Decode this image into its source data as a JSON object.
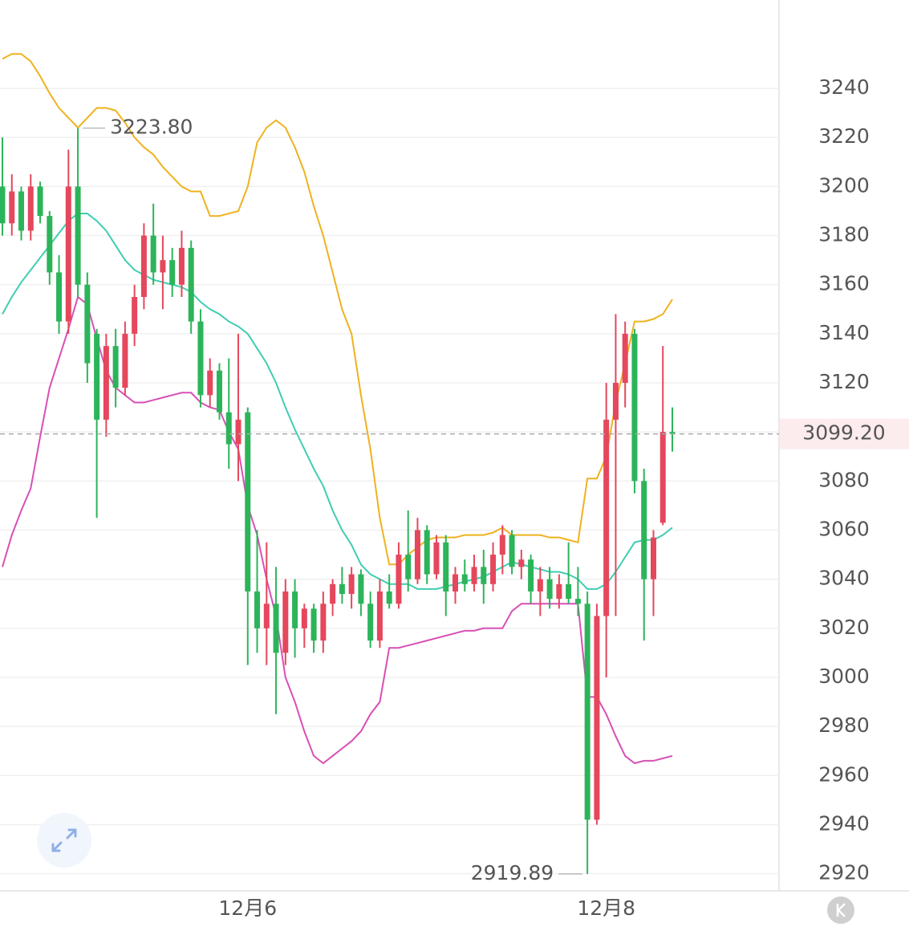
{
  "chart_data": {
    "type": "candlestick",
    "up_color": "#e5475c",
    "down_color": "#2cb45a",
    "ylim": [
      2913,
      3276
    ],
    "yticks": [
      2920,
      2940,
      2960,
      2980,
      3000,
      3020,
      3040,
      3060,
      3080,
      3100,
      3120,
      3140,
      3160,
      3180,
      3200,
      3220,
      3240
    ],
    "grid": true,
    "categories": [
      null,
      null,
      null,
      null,
      null,
      null,
      null,
      null,
      null,
      null,
      null,
      null,
      null,
      null,
      null,
      null,
      null,
      null,
      null,
      null,
      null,
      null,
      null,
      null,
      null,
      null,
      "12月6",
      null,
      null,
      null,
      null,
      null,
      null,
      null,
      null,
      null,
      null,
      null,
      null,
      null,
      null,
      null,
      null,
      null,
      null,
      null,
      null,
      null,
      null,
      null,
      null,
      null,
      null,
      null,
      null,
      null,
      null,
      null,
      null,
      null,
      null,
      null,
      null,
      null,
      "12月8",
      null,
      null,
      null,
      null,
      null,
      null,
      null
    ],
    "open": [
      3200,
      3185,
      3198,
      3182,
      3200,
      3188,
      3165,
      3145,
      3200,
      3160,
      3140,
      3105,
      3135,
      3118,
      3140,
      3155,
      3180,
      3165,
      3170,
      3160,
      3175,
      3145,
      3115,
      3125,
      3108,
      3095,
      3108,
      3035,
      3020,
      3030,
      3010,
      3035,
      3020,
      3028,
      3015,
      3030,
      3038,
      3034,
      3042,
      3030,
      3015,
      3035,
      3030,
      3050,
      3040,
      3060,
      3042,
      3055,
      3035,
      3042,
      3038,
      3045,
      3038,
      3050,
      3058,
      3045,
      3048,
      3035,
      3040,
      3032,
      3038,
      3032,
      3030,
      2942,
      3025,
      3105,
      3120,
      3140,
      3080,
      3040,
      3063,
      3100
    ],
    "high": [
      3220,
      3205,
      3200,
      3205,
      3202,
      3190,
      3172,
      3215,
      3223.8,
      3165,
      3142,
      3140,
      3142,
      3145,
      3160,
      3185,
      3193,
      3180,
      3175,
      3182,
      3178,
      3150,
      3130,
      3128,
      3130,
      3140,
      3110,
      3060,
      3055,
      3045,
      3040,
      3040,
      3030,
      3030,
      3035,
      3040,
      3045,
      3045,
      3044,
      3035,
      3040,
      3042,
      3055,
      3068,
      3065,
      3062,
      3058,
      3058,
      3045,
      3048,
      3050,
      3052,
      3055,
      3062,
      3060,
      3052,
      3050,
      3045,
      3045,
      3042,
      3055,
      3045,
      3035,
      3030,
      3120,
      3148,
      3145,
      3142,
      3085,
      3060,
      3135,
      3110
    ],
    "low": [
      3180,
      3180,
      3178,
      3178,
      3185,
      3160,
      3140,
      3140,
      3155,
      3120,
      3065,
      3098,
      3110,
      3115,
      3135,
      3150,
      3160,
      3150,
      3155,
      3155,
      3140,
      3110,
      3110,
      3105,
      3085,
      3080,
      3005,
      3010,
      3005,
      2985,
      3005,
      3008,
      3012,
      3010,
      3010,
      3025,
      3030,
      3028,
      3025,
      3012,
      3012,
      3028,
      3028,
      3035,
      3038,
      3038,
      3040,
      3025,
      3030,
      3035,
      3035,
      3030,
      3035,
      3042,
      3042,
      3040,
      3030,
      3025,
      3028,
      3028,
      3030,
      3025,
      2919.89,
      2940,
      3000,
      3025,
      3110,
      3075,
      3015,
      3025,
      3062,
      3092
    ],
    "close": [
      3185,
      3198,
      3182,
      3200,
      3188,
      3165,
      3145,
      3200,
      3160,
      3128,
      3105,
      3135,
      3118,
      3140,
      3155,
      3180,
      3165,
      3170,
      3160,
      3175,
      3145,
      3115,
      3125,
      3108,
      3095,
      3105,
      3035,
      3020,
      3030,
      3010,
      3035,
      3020,
      3028,
      3015,
      3030,
      3038,
      3034,
      3042,
      3030,
      3015,
      3035,
      3030,
      3050,
      3040,
      3060,
      3042,
      3055,
      3035,
      3042,
      3038,
      3045,
      3038,
      3050,
      3058,
      3045,
      3048,
      3035,
      3040,
      3032,
      3038,
      3032,
      3030,
      2942,
      3025,
      3105,
      3120,
      3140,
      3080,
      3040,
      3057,
      3100,
      3099.2
    ],
    "bands": [
      {
        "color": "#efb21f",
        "values": [
          3252,
          3254,
          3254,
          3251,
          3245,
          3238,
          3232,
          3228,
          3224,
          3228,
          3232,
          3232,
          3231,
          3226,
          3220,
          3216,
          3213,
          3208,
          3204,
          3200,
          3198,
          3198,
          3188,
          3188,
          3189,
          3190,
          3200,
          3218,
          3224,
          3227,
          3224,
          3216,
          3206,
          3192,
          3180,
          3165,
          3150,
          3140,
          3115,
          3093,
          3065,
          3046,
          3046,
          3050,
          3053,
          3056,
          3057,
          3057,
          3057,
          3058,
          3058,
          3058,
          3059,
          3061,
          3058,
          3058,
          3058,
          3058,
          3057,
          3057,
          3056,
          3055,
          3081,
          3081,
          3090,
          3112,
          3128,
          3145,
          3145,
          3146,
          3148,
          3154
        ]
      },
      {
        "color": "#3fcdb2",
        "values": [
          3148,
          3155,
          3161,
          3166,
          3171,
          3176,
          3181,
          3186,
          3189,
          3189,
          3186,
          3182,
          3176,
          3170,
          3166,
          3164,
          3162,
          3161,
          3160,
          3159,
          3157,
          3153,
          3150,
          3148,
          3145,
          3143,
          3140,
          3134,
          3128,
          3120,
          3110,
          3101,
          3093,
          3085,
          3078,
          3068,
          3060,
          3054,
          3046,
          3042,
          3040,
          3038,
          3038,
          3038,
          3036,
          3036,
          3036,
          3037,
          3038,
          3039,
          3040,
          3041,
          3043,
          3045,
          3047,
          3046,
          3045,
          3044,
          3043,
          3043,
          3042,
          3040,
          3036,
          3036,
          3038,
          3043,
          3049,
          3055,
          3056,
          3056,
          3058,
          3061
        ]
      },
      {
        "color": "#d94fb6",
        "values": [
          3045,
          3058,
          3068,
          3077,
          3098,
          3118,
          3130,
          3142,
          3155,
          3152,
          3138,
          3125,
          3118,
          3115,
          3112,
          3112,
          3113,
          3114,
          3115,
          3116,
          3116,
          3112,
          3110,
          3109,
          3100,
          3093,
          3070,
          3058,
          3040,
          3025,
          3000,
          2990,
          2978,
          2968,
          2965,
          2968,
          2971,
          2974,
          2978,
          2985,
          2990,
          3012,
          3012,
          3013,
          3014,
          3015,
          3016,
          3017,
          3018,
          3019,
          3019,
          3020,
          3020,
          3020,
          3027,
          3030,
          3030,
          3030,
          3030,
          3030,
          3030,
          3030,
          2992,
          2992,
          2985,
          2976,
          2968,
          2965,
          2966,
          2966,
          2967,
          2968
        ]
      }
    ],
    "annotations": [
      {
        "value": 3223.8,
        "label": "3223.80"
      },
      {
        "value": 2919.89,
        "label": "2919.89"
      }
    ],
    "last_price": {
      "value": 3099.2,
      "label": "3099.20"
    }
  }
}
